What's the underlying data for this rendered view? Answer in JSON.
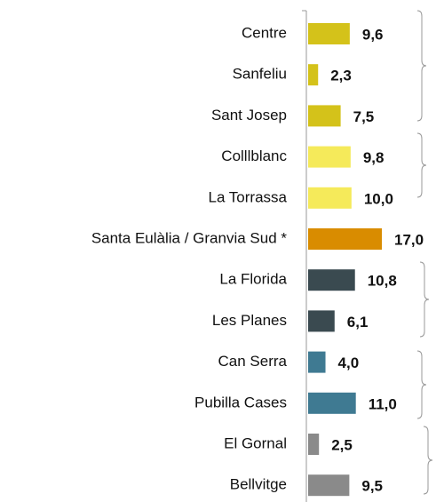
{
  "chart_data": {
    "type": "barh",
    "categories": [
      "Centre",
      "Sanfeliu",
      "Sant Josep",
      "Colllblanc",
      "La Torrassa",
      "Santa Eulàlia / Granvia Sud *",
      "La Florida",
      "Les Planes",
      "Can Serra",
      "Pubilla Cases",
      "El Gornal",
      "Bellvitge"
    ],
    "values": [
      9.6,
      2.3,
      7.5,
      9.8,
      10.0,
      17.0,
      10.8,
      6.1,
      4.0,
      11.0,
      2.5,
      9.5
    ],
    "value_labels": [
      "9,6",
      "2,3",
      "7,5",
      "9,8",
      "10,0",
      "17,0",
      "10,8",
      "6,1",
      "4,0",
      "11,0",
      "2,5",
      "9,5"
    ],
    "colors": [
      "#d4c21a",
      "#d4c21a",
      "#d4c21a",
      "#f5ea5a",
      "#f5ea5a",
      "#d98c00",
      "#3a4a50",
      "#3a4a50",
      "#3f7a92",
      "#3f7a92",
      "#8a8a8a",
      "#8a8a8a"
    ]
  }
}
